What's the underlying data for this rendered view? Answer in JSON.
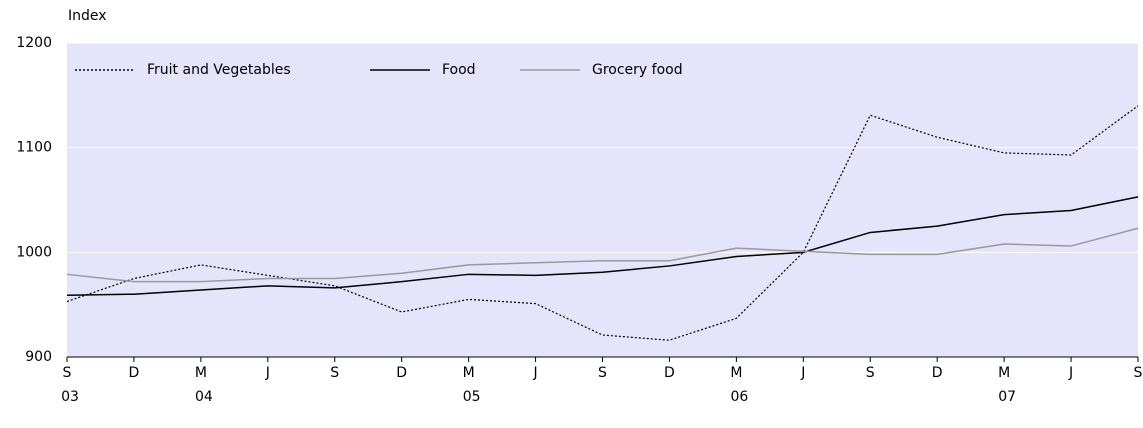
{
  "chart_data": {
    "type": "line",
    "y_axis_label": "Index",
    "categories": [
      "S",
      "D",
      "M",
      "J",
      "S",
      "D",
      "M",
      "J",
      "S",
      "D",
      "M",
      "J",
      "S",
      "D",
      "M",
      "J",
      "S"
    ],
    "category_years": [
      "03",
      null,
      "04",
      null,
      null,
      null,
      "05",
      null,
      null,
      null,
      "06",
      null,
      null,
      null,
      "07",
      null,
      null
    ],
    "series": [
      {
        "name": "Fruit and Vegetables",
        "color": "#000000",
        "dash": "dotted",
        "values": [
          953,
          975,
          988,
          978,
          968,
          943,
          955,
          951,
          921,
          916,
          937,
          1000,
          1131,
          1110,
          1095,
          1093,
          1140
        ]
      },
      {
        "name": "Food",
        "color": "#000000",
        "dash": "solid",
        "values": [
          959,
          960,
          964,
          968,
          966,
          972,
          979,
          978,
          981,
          987,
          996,
          1000,
          1019,
          1025,
          1036,
          1040,
          1053
        ]
      },
      {
        "name": "Grocery food",
        "color": "#999999",
        "dash": "solid",
        "values": [
          979,
          972,
          972,
          975,
          975,
          980,
          988,
          990,
          992,
          992,
          1004,
          1001,
          998,
          998,
          1008,
          1006,
          1023
        ]
      }
    ],
    "ylim": [
      900,
      1200
    ],
    "yticks": [
      900,
      1000,
      1100,
      1200
    ],
    "grid": true,
    "background": "#e4e4fa",
    "legend": "top-left"
  }
}
